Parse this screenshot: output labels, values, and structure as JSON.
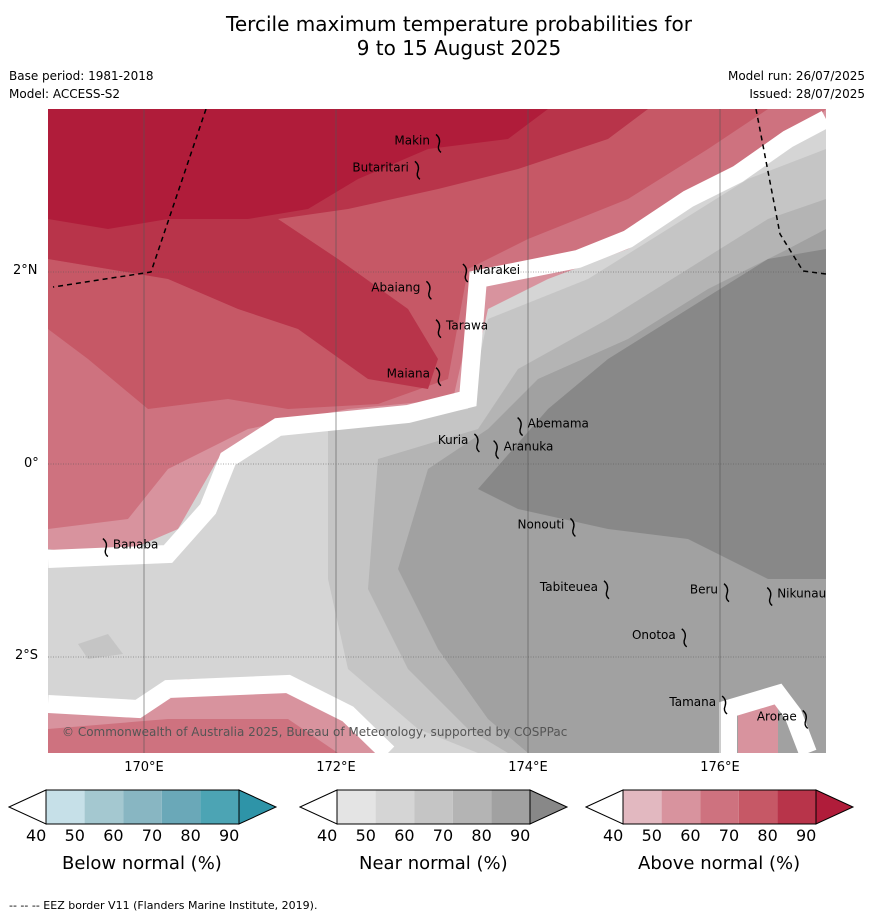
{
  "title_line1": "Tercile maximum temperature probabilities for",
  "title_line2": "9 to 15 August 2025",
  "base_period": "Base period: 1981-2018",
  "model": "Model: ACCESS-S2",
  "model_run": "Model run: 26/07/2025",
  "issued": "Issued: 28/07/2025",
  "lat_labels": [
    "2°N",
    "0°",
    "2°S"
  ],
  "lon_labels": [
    "170°E",
    "172°E",
    "174°E",
    "176°E"
  ],
  "places": [
    {
      "name": "Makin",
      "lon": 173.0,
      "lat": 3.35
    },
    {
      "name": "Butaritari",
      "lon": 172.78,
      "lat": 3.07
    },
    {
      "name": "Marakei",
      "lon": 173.28,
      "lat": 2.0
    },
    {
      "name": "Abaiang",
      "lon": 172.9,
      "lat": 1.82
    },
    {
      "name": "Tarawa",
      "lon": 173.0,
      "lat": 1.42
    },
    {
      "name": "Maiana",
      "lon": 173.0,
      "lat": 0.92
    },
    {
      "name": "Abemama",
      "lon": 173.85,
      "lat": 0.4
    },
    {
      "name": "Kuria",
      "lon": 173.4,
      "lat": 0.23
    },
    {
      "name": "Aranuka",
      "lon": 173.6,
      "lat": 0.16
    },
    {
      "name": "Banaba",
      "lon": 169.53,
      "lat": -0.86
    },
    {
      "name": "Nonouti",
      "lon": 174.4,
      "lat": -0.65
    },
    {
      "name": "Tabiteuea",
      "lon": 174.75,
      "lat": -1.3
    },
    {
      "name": "Beru",
      "lon": 176.0,
      "lat": -1.33
    },
    {
      "name": "Nikunau",
      "lon": 176.45,
      "lat": -1.37
    },
    {
      "name": "Onotoa",
      "lon": 175.56,
      "lat": -1.8
    },
    {
      "name": "Tamana",
      "lon": 175.98,
      "lat": -2.5
    },
    {
      "name": "Arorae",
      "lon": 176.82,
      "lat": -2.65
    }
  ],
  "copyright": "© Commonwealth of Australia 2025, Bureau of Meteorology, supported by COSPPac",
  "colorbars": [
    {
      "title": "Below normal (%)",
      "ticks": [
        "40",
        "50",
        "60",
        "70",
        "80",
        "90"
      ],
      "colors": [
        "#ffffff",
        "#c6e0e8",
        "#a4c8d0",
        "#88b6c2",
        "#6aa8b8",
        "#4ca4b4",
        "#2e94a8"
      ]
    },
    {
      "title": "Near normal (%)",
      "ticks": [
        "40",
        "50",
        "60",
        "70",
        "80",
        "90"
      ],
      "colors": [
        "#ffffff",
        "#e4e4e4",
        "#d5d5d5",
        "#c5c5c5",
        "#b4b4b4",
        "#a1a1a1",
        "#888888"
      ]
    },
    {
      "title": "Above normal (%)",
      "ticks": [
        "40",
        "50",
        "60",
        "70",
        "80",
        "90"
      ],
      "colors": [
        "#ffffff",
        "#e2b8c0",
        "#d8939e",
        "#ce727f",
        "#c65866",
        "#b8344a",
        "#b01c3a"
      ]
    }
  ],
  "footer": "--  --  -- EEZ border V11 (Flanders Marine Institute, 2019)."
}
